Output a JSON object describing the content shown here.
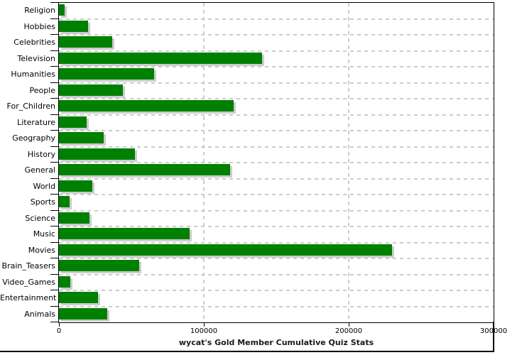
{
  "chart_data": {
    "type": "bar",
    "orientation": "horizontal",
    "title": "wycat's Gold Member Cumulative Quiz Stats",
    "categories": [
      "Religion",
      "Hobbies",
      "Celebrities",
      "Television",
      "Humanities",
      "People",
      "For_Children",
      "Literature",
      "Geography",
      "History",
      "General",
      "World",
      "Sports",
      "Science",
      "Music",
      "Movies",
      "Brain_Teasers",
      "Video_Games",
      "Entertainment",
      "Animals"
    ],
    "values": [
      4000,
      20000,
      37000,
      140000,
      65500,
      44000,
      120500,
      19000,
      31000,
      52500,
      118000,
      23000,
      7500,
      21000,
      90000,
      230000,
      55500,
      8000,
      27000,
      33500
    ],
    "xlim": [
      0,
      300000
    ],
    "x_ticks": [
      0,
      100000,
      200000,
      300000
    ],
    "x_tick_labels": [
      "0",
      "100000",
      "200000",
      "300000"
    ],
    "xlabel": "",
    "ylabel": "",
    "grid": true,
    "legend_position": "none",
    "colors": {
      "bar": "#008000",
      "bar_shadow": "#cccccc",
      "gridline": "#cccccc",
      "axis": "#000000",
      "text": "#000000",
      "background": "#ffffff"
    }
  }
}
